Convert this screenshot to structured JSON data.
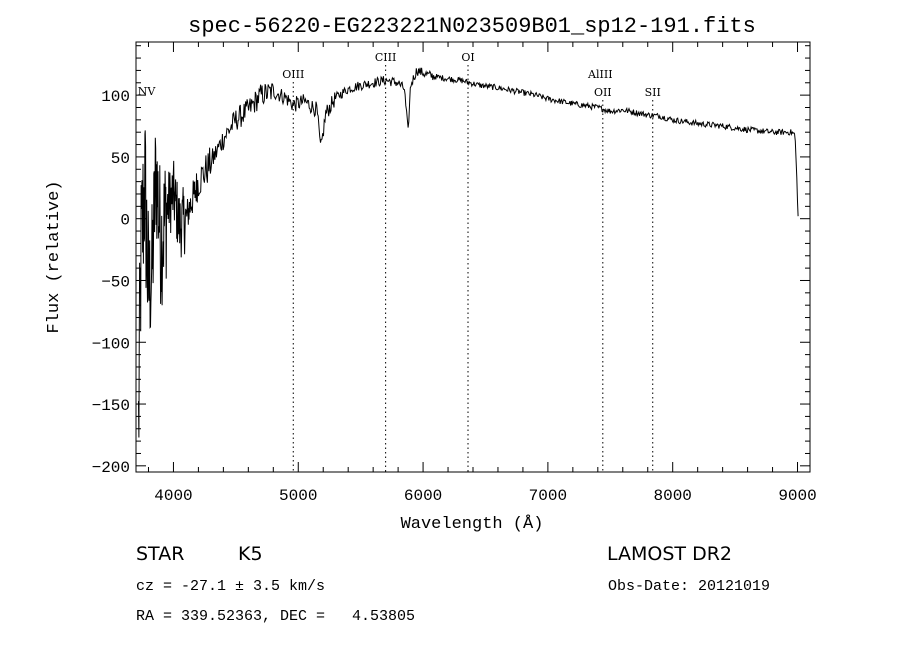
{
  "chart_data": {
    "type": "line",
    "title": "spec-56220-EG223221N023509B01_sp12-191.fits",
    "xlabel": "Wavelength (Å)",
    "ylabel": "Flux (relative)",
    "xlim": [
      3700,
      9100
    ],
    "ylim": [
      -205,
      143
    ],
    "x_ticks": [
      4000,
      5000,
      6000,
      7000,
      8000,
      9000
    ],
    "y_ticks": [
      -200,
      -150,
      -100,
      -50,
      0,
      50,
      100
    ],
    "grid": false,
    "line_color": "#000000",
    "lines": [
      {
        "label": "NV",
        "x": 3720
      },
      {
        "label": "OIII",
        "x": 4960
      },
      {
        "label": "CIII",
        "x": 5700
      },
      {
        "label": "OI",
        "x": 6360
      },
      {
        "label": "AlIII",
        "x": 7420
      },
      {
        "label": "OII",
        "x": 7440
      },
      {
        "label": "SII",
        "x": 7840
      }
    ],
    "series": [
      {
        "anchors": [
          [
            3720,
            -170
          ],
          [
            3740,
            -30
          ],
          [
            3770,
            30
          ],
          [
            3800,
            -60
          ],
          [
            3830,
            -40
          ],
          [
            3860,
            40
          ],
          [
            3900,
            -20
          ],
          [
            3950,
            10
          ],
          [
            4000,
            20
          ],
          [
            4050,
            -5
          ],
          [
            4100,
            0
          ],
          [
            4150,
            15
          ],
          [
            4200,
            30
          ],
          [
            4300,
            45
          ],
          [
            4400,
            65
          ],
          [
            4500,
            80
          ],
          [
            4600,
            88
          ],
          [
            4700,
            100
          ],
          [
            4800,
            103
          ],
          [
            4900,
            98
          ],
          [
            4960,
            92
          ],
          [
            5050,
            95
          ],
          [
            5150,
            88
          ],
          [
            5180,
            55
          ],
          [
            5220,
            85
          ],
          [
            5300,
            98
          ],
          [
            5400,
            105
          ],
          [
            5500,
            108
          ],
          [
            5600,
            110
          ],
          [
            5700,
            112
          ],
          [
            5800,
            110
          ],
          [
            5850,
            105
          ],
          [
            5880,
            70
          ],
          [
            5900,
            108
          ],
          [
            5950,
            120
          ],
          [
            6050,
            116
          ],
          [
            6150,
            114
          ],
          [
            6300,
            112
          ],
          [
            6450,
            108
          ],
          [
            6600,
            106
          ],
          [
            6700,
            104
          ],
          [
            6800,
            102
          ],
          [
            6900,
            100
          ],
          [
            7000,
            97
          ],
          [
            7200,
            93
          ],
          [
            7400,
            90
          ],
          [
            7500,
            87
          ],
          [
            7600,
            88
          ],
          [
            7700,
            86
          ],
          [
            7800,
            84
          ],
          [
            7900,
            83
          ],
          [
            8000,
            80
          ],
          [
            8200,
            77
          ],
          [
            8400,
            75
          ],
          [
            8600,
            72
          ],
          [
            8800,
            70
          ],
          [
            8950,
            70
          ],
          [
            8980,
            68
          ],
          [
            8995,
            30
          ],
          [
            9005,
            2
          ]
        ]
      }
    ]
  },
  "footer": {
    "object_class": "STAR",
    "subclass": "K5",
    "survey": "LAMOST DR2",
    "redshift": "cz = -27.1 ± 3.5 km/s",
    "obs_date": "Obs-Date: 20121019",
    "coords": "RA = 339.52363, DEC =   4.53805"
  }
}
